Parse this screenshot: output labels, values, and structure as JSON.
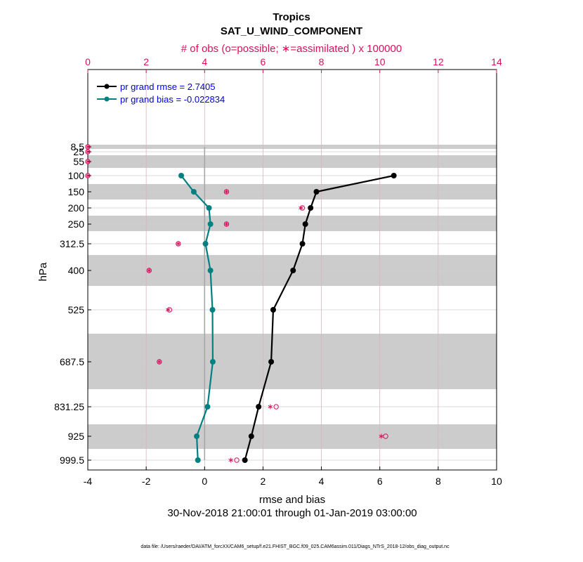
{
  "chart_data": {
    "type": "line",
    "title": "Tropics",
    "subtitle": "SAT_U_WIND_COMPONENT",
    "top_axis_label": "# of obs (o=possible; ∗=assimilated ) x 100000",
    "xlabel": "rmse and bias",
    "ylabel": "hPa",
    "date_range": "30-Nov-2018 21:00:01 through 01-Jan-2019 03:00:00",
    "footnote": "data file: /Users/raeder/DAI/ATM_forcXX/CAM6_setup/f.e21.FHIST_BGC.f09_025.CAM6assim.011/Diags_NTrS_2018-12/obs_diag_output.nc",
    "xlim": [
      -4,
      10
    ],
    "x_ticks": [
      "-4",
      "-2",
      "0",
      "2",
      "4",
      "6",
      "8",
      "10"
    ],
    "top_xlim": [
      0,
      14
    ],
    "top_ticks": [
      "0",
      "2",
      "4",
      "6",
      "8",
      "10",
      "12",
      "14"
    ],
    "levels": [
      8.5,
      25,
      55,
      100,
      150,
      200,
      250,
      312.5,
      400,
      525,
      687.5,
      831.25,
      925,
      999.5
    ],
    "level_labels": [
      "8.5",
      "25",
      "55",
      "100",
      "150",
      "200",
      "250",
      "312.5",
      "400",
      "525",
      "687.5",
      "831.25",
      "925",
      "999.5"
    ],
    "colors": {
      "rmse": "#000000",
      "bias": "#008080",
      "obs": "#d6125e",
      "legend_text": "#0000e0",
      "band": "#cccccc"
    },
    "legend": {
      "placement": "top-left"
    },
    "series": [
      {
        "name": "pr grand rmse = 2.7405",
        "levels": [
          100,
          150,
          200,
          250,
          312.5,
          400,
          525,
          687.5,
          831.25,
          925,
          999.5
        ],
        "values": [
          6.48,
          3.83,
          3.63,
          3.45,
          3.35,
          3.03,
          2.35,
          2.28,
          1.85,
          1.6,
          1.38
        ]
      },
      {
        "name": "pr grand bias = -0.022834",
        "levels": [
          100,
          150,
          200,
          250,
          312.5,
          400,
          525,
          687.5,
          831.25,
          925,
          999.5
        ],
        "values": [
          -0.8,
          -0.37,
          0.15,
          0.2,
          0.03,
          0.2,
          0.27,
          0.28,
          0.1,
          -0.27,
          -0.23
        ]
      }
    ],
    "obs_counts": {
      "levels": [
        8.5,
        25,
        55,
        100,
        150,
        200,
        250,
        312.5,
        400,
        525,
        687.5,
        831.25,
        925,
        999.5
      ],
      "possible": [
        0,
        0,
        0,
        0,
        4.75,
        7.35,
        4.75,
        3.1,
        2.1,
        2.8,
        2.45,
        6.45,
        10.2,
        5.1
      ],
      "assimilated": [
        0,
        0,
        0,
        0,
        4.75,
        7.3,
        4.75,
        3.1,
        2.1,
        2.75,
        2.45,
        6.25,
        10.05,
        4.9
      ]
    }
  }
}
